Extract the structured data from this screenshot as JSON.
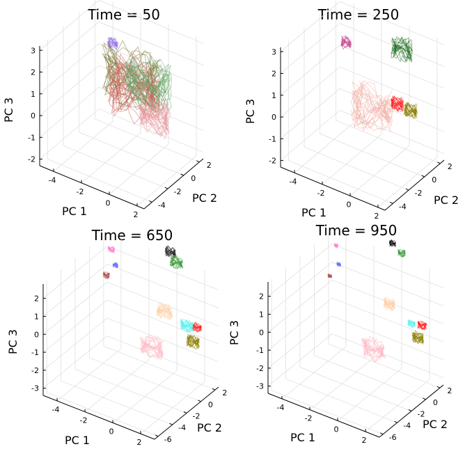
{
  "chart_data": [
    {
      "type": "line",
      "projection": "3d",
      "title": "Time = 50",
      "xlabel": "PC 1",
      "ylabel": "PC 2",
      "zlabel": "PC 3",
      "xticks": [
        "-4",
        "-2",
        "0",
        "2"
      ],
      "xlim": [
        -5,
        2.5
      ],
      "yticks": [
        "-4",
        "-2",
        "0",
        "2"
      ],
      "ylim": [
        -5,
        2.5
      ],
      "zticks": [
        "3",
        "2",
        "1",
        "0",
        "-1",
        "-2"
      ],
      "zlim": [
        -2.3,
        3.2
      ],
      "grid": true,
      "clusters": [
        {
          "pc1": -3.6,
          "pc2": 1.8,
          "pc3": 1.6,
          "spread": 0.4,
          "color": "#8c6de0"
        },
        {
          "pc1": -0.9,
          "pc2": -0.6,
          "pc3": 1.5,
          "spread": 2.2,
          "color": "#7a7a3a"
        },
        {
          "pc1": -0.5,
          "pc2": -1.0,
          "pc3": 1.2,
          "spread": 2.0,
          "color": "#d65b5b"
        },
        {
          "pc1": 0.1,
          "pc2": -0.3,
          "pc3": 1.4,
          "spread": 1.8,
          "color": "#6aa56a"
        },
        {
          "pc1": 1.1,
          "pc2": -1.2,
          "pc3": 0.4,
          "spread": 1.2,
          "color": "#e89aa0"
        }
      ]
    },
    {
      "type": "line",
      "projection": "3d",
      "title": "Time = 250",
      "xlabel": "PC 1",
      "ylabel": "PC 2",
      "zlabel": "PC 3",
      "xticks": [
        "-4",
        "-2",
        "0",
        "2"
      ],
      "xlim": [
        -5,
        2.5
      ],
      "yticks": [
        "-4",
        "-2",
        "0",
        "2"
      ],
      "ylim": [
        -5,
        2.5
      ],
      "zticks": [
        "3",
        "2",
        "1",
        "0",
        "-1",
        "-2"
      ],
      "zlim": [
        -2.3,
        3.2
      ],
      "grid": true,
      "clusters": [
        {
          "pc1": -4.2,
          "pc2": 1.9,
          "pc3": 1.5,
          "spread": 0.4,
          "color": "#c13a88"
        },
        {
          "pc1": 0.2,
          "pc2": 1.2,
          "pc3": 2.6,
          "spread": 0.8,
          "color": "#1f6b1f"
        },
        {
          "pc1": -0.3,
          "pc2": -1.6,
          "pc3": 0.6,
          "spread": 1.6,
          "color": "#f3b0a8"
        },
        {
          "pc1": 1.0,
          "pc2": -0.8,
          "pc3": 0.9,
          "spread": 0.5,
          "color": "#ff1a1a"
        },
        {
          "pc1": 1.8,
          "pc2": -0.5,
          "pc3": 0.7,
          "spread": 0.5,
          "color": "#8a7d00"
        }
      ]
    },
    {
      "type": "line",
      "projection": "3d",
      "title": "Time = 650",
      "xlabel": "PC 1",
      "ylabel": "PC 2",
      "zlabel": "PC 3",
      "xticks": [
        "-4",
        "-2",
        "0",
        "2"
      ],
      "xlim": [
        -5,
        3
      ],
      "yticks": [
        "-6",
        "-4",
        "-2",
        "0",
        "2"
      ],
      "ylim": [
        -6.5,
        2.5
      ],
      "zticks": [
        "2",
        "1",
        "0",
        "-1",
        "-2",
        "-3"
      ],
      "zlim": [
        -3.4,
        2.8
      ],
      "grid": true,
      "clusters": [
        {
          "pc1": -4.4,
          "pc2": 1.9,
          "pc3": 2.2,
          "spread": 0.25,
          "color": "#ff7fd6"
        },
        {
          "pc1": -3.9,
          "pc2": 1.5,
          "pc3": 1.6,
          "spread": 0.2,
          "color": "#6a6aff"
        },
        {
          "pc1": -4.5,
          "pc2": 1.4,
          "pc3": 0.9,
          "spread": 0.25,
          "color": "#b05050"
        },
        {
          "pc1": -0.2,
          "pc2": 2.0,
          "pc3": 3.3,
          "spread": 0.4,
          "color": "#111111"
        },
        {
          "pc1": 0.4,
          "pc2": 1.7,
          "pc3": 3.0,
          "spread": 0.5,
          "color": "#3a9a3a"
        },
        {
          "pc1": 0.9,
          "pc2": -1.0,
          "pc3": 1.3,
          "spread": 0.6,
          "color": "#ffd0a8"
        },
        {
          "pc1": 0.6,
          "pc2": -2.2,
          "pc3": -0.4,
          "spread": 0.9,
          "color": "#ffb6c1"
        },
        {
          "pc1": 2.3,
          "pc2": -0.6,
          "pc3": 0.8,
          "spread": 0.5,
          "color": "#55f0f0"
        },
        {
          "pc1": 2.9,
          "pc2": -0.9,
          "pc3": 0.2,
          "spread": 0.5,
          "color": "#8a7d00"
        },
        {
          "pc1": 3.0,
          "pc2": -0.5,
          "pc3": 0.9,
          "spread": 0.35,
          "color": "#ff1a1a"
        }
      ]
    },
    {
      "type": "line",
      "projection": "3d",
      "title": "Time = 950",
      "xlabel": "PC 1",
      "ylabel": "PC 2",
      "zlabel": "PC 3",
      "xticks": [
        "-4",
        "-2",
        "0",
        "2"
      ],
      "xlim": [
        -5,
        3
      ],
      "yticks": [
        "-6",
        "-4",
        "-2",
        "0",
        "2"
      ],
      "ylim": [
        -6.5,
        2.5
      ],
      "zticks": [
        "2",
        "1",
        "0",
        "-1",
        "-2",
        "-3"
      ],
      "zlim": [
        -3.4,
        2.8
      ],
      "grid": true,
      "clusters": [
        {
          "pc1": -4.4,
          "pc2": 1.9,
          "pc3": 2.3,
          "spread": 0.15,
          "color": "#ff7fd6"
        },
        {
          "pc1": -4.0,
          "pc2": 1.5,
          "pc3": 1.5,
          "spread": 0.15,
          "color": "#6a6aff"
        },
        {
          "pc1": -4.6,
          "pc2": 1.4,
          "pc3": 0.7,
          "spread": 0.15,
          "color": "#b05050"
        },
        {
          "pc1": -0.4,
          "pc2": 2.0,
          "pc3": 3.6,
          "spread": 0.25,
          "color": "#111111"
        },
        {
          "pc1": 0.4,
          "pc2": 1.7,
          "pc3": 3.4,
          "spread": 0.3,
          "color": "#3a9a3a"
        },
        {
          "pc1": 0.9,
          "pc2": -1.0,
          "pc3": 1.6,
          "spread": 0.45,
          "color": "#ffd0a8"
        },
        {
          "pc1": 0.5,
          "pc2": -2.4,
          "pc3": -0.6,
          "spread": 0.9,
          "color": "#ffb6c1"
        },
        {
          "pc1": 2.3,
          "pc2": -0.6,
          "pc3": 0.8,
          "spread": 0.3,
          "color": "#55f0f0"
        },
        {
          "pc1": 2.9,
          "pc2": -0.9,
          "pc3": 0.3,
          "spread": 0.45,
          "color": "#8a7d00"
        },
        {
          "pc1": 3.0,
          "pc2": -0.5,
          "pc3": 0.9,
          "spread": 0.35,
          "color": "#ff1a1a"
        }
      ]
    }
  ]
}
